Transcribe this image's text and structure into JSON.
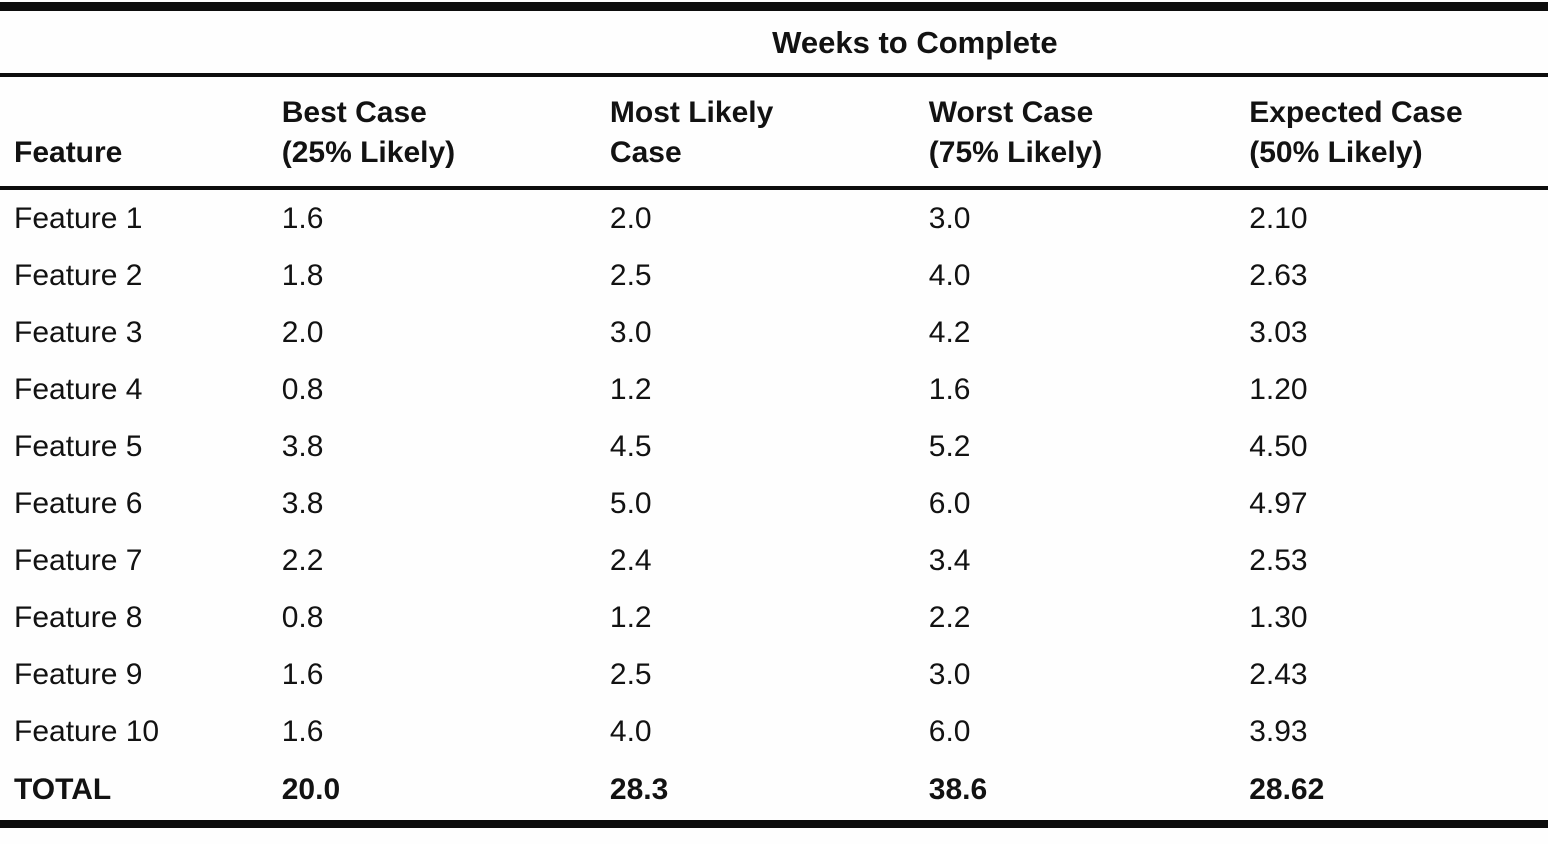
{
  "page": {
    "background": "#fefefe",
    "text_color": "#121212",
    "rule_color": "#0d0d0d"
  },
  "table": {
    "title": "Weeks to Complete",
    "feature_header": "Feature",
    "columns": [
      {
        "line1": "Best Case",
        "line2": "(25% Likely)"
      },
      {
        "line1": "Most Likely",
        "line2": "Case"
      },
      {
        "line1": "Worst Case",
        "line2": "(75% Likely)"
      },
      {
        "line1": "Expected Case",
        "line2": "(50% Likely)"
      }
    ],
    "rows": [
      {
        "feature": "Feature 1",
        "best": "1.6",
        "most_likely": "2.0",
        "worst": "3.0",
        "expected": "2.10"
      },
      {
        "feature": "Feature 2",
        "best": "1.8",
        "most_likely": "2.5",
        "worst": "4.0",
        "expected": "2.63"
      },
      {
        "feature": "Feature 3",
        "best": "2.0",
        "most_likely": "3.0",
        "worst": "4.2",
        "expected": "3.03"
      },
      {
        "feature": "Feature 4",
        "best": "0.8",
        "most_likely": "1.2",
        "worst": "1.6",
        "expected": "1.20"
      },
      {
        "feature": "Feature 5",
        "best": "3.8",
        "most_likely": "4.5",
        "worst": "5.2",
        "expected": "4.50"
      },
      {
        "feature": "Feature 6",
        "best": "3.8",
        "most_likely": "5.0",
        "worst": "6.0",
        "expected": "4.97"
      },
      {
        "feature": "Feature 7",
        "best": "2.2",
        "most_likely": "2.4",
        "worst": "3.4",
        "expected": "2.53"
      },
      {
        "feature": "Feature 8",
        "best": "0.8",
        "most_likely": "1.2",
        "worst": "2.2",
        "expected": "1.30"
      },
      {
        "feature": "Feature 9",
        "best": "1.6",
        "most_likely": "2.5",
        "worst": "3.0",
        "expected": "2.43"
      },
      {
        "feature": "Feature 10",
        "best": "1.6",
        "most_likely": "4.0",
        "worst": "6.0",
        "expected": "3.93"
      }
    ],
    "total": {
      "label": "TOTAL",
      "best": "20.0",
      "most_likely": "28.3",
      "worst": "38.6",
      "expected": "28.62"
    }
  }
}
